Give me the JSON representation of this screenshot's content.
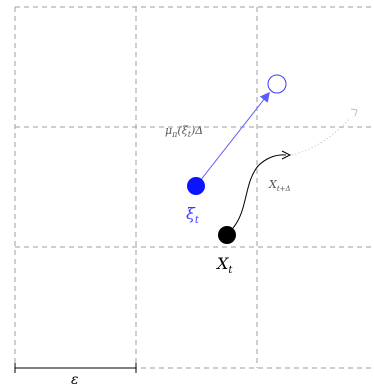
{
  "labels": {
    "xi_t": "ξ",
    "xi_t_sub": "t",
    "x_t": "X",
    "x_t_sub": "t",
    "mu_main": "μ",
    "mu_sub": "π",
    "mu_arg": "(ξ",
    "mu_arg_sub": "t",
    "mu_tail": ")Δ",
    "x_tdelta": "X",
    "x_tdelta_sub": "t+Δ",
    "epsilon": "ε"
  },
  "colors": {
    "grid": "#9e9e9e",
    "xi_fill": "#0a14ff",
    "arrow_blue": "#5a5cff",
    "xi_label": "#3a3aff",
    "x_fill": "#000000",
    "curve": "#000000",
    "dotted": "#bdbdbd",
    "label_gray": "#555555"
  }
}
